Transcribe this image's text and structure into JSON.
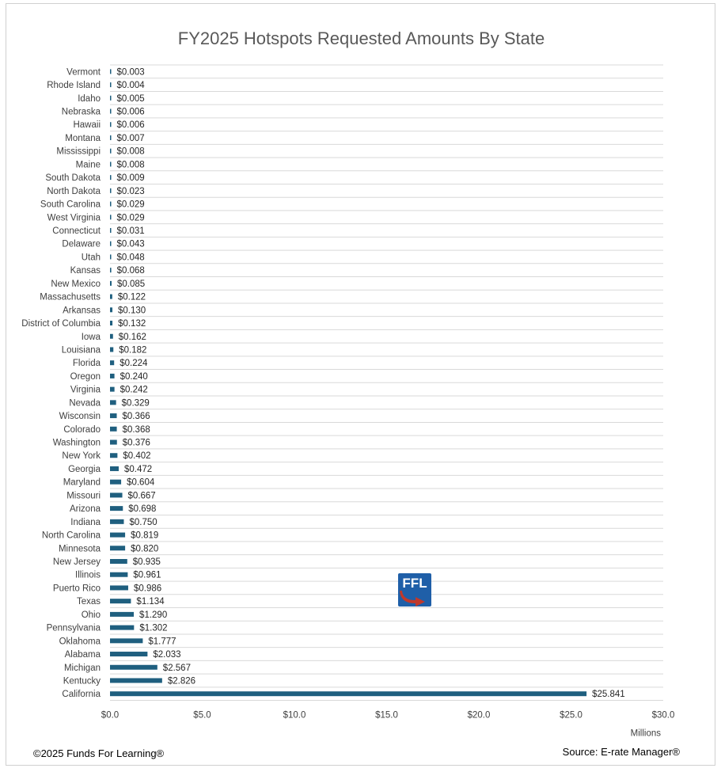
{
  "chart_data": {
    "type": "bar",
    "orientation": "horizontal",
    "title": "FY2025 Hotspots Requested Amounts By State",
    "xlabel": "",
    "x_unit_label": "Millions",
    "xlim": [
      0,
      30
    ],
    "x_ticks": [
      "$0.0",
      "$5.0",
      "$10.0",
      "$15.0",
      "$20.0",
      "$25.0",
      "$30.0"
    ],
    "grid": true,
    "bar_color": "#1f5f7f",
    "categories": [
      "Vermont",
      "Rhode Island",
      "Idaho",
      "Nebraska",
      "Hawaii",
      "Montana",
      "Mississippi",
      "Maine",
      "South Dakota",
      "North Dakota",
      "South Carolina",
      "West Virginia",
      "Connecticut",
      "Delaware",
      "Utah",
      "Kansas",
      "New Mexico",
      "Massachusetts",
      "Arkansas",
      "District of Columbia",
      "Iowa",
      "Louisiana",
      "Florida",
      "Oregon",
      "Virginia",
      "Nevada",
      "Wisconsin",
      "Colorado",
      "Washington",
      "New York",
      "Georgia",
      "Maryland",
      "Missouri",
      "Arizona",
      "Indiana",
      "North Carolina",
      "Minnesota",
      "New Jersey",
      "Illinois",
      "Puerto Rico",
      "Texas",
      "Ohio",
      "Pennsylvania",
      "Oklahoma",
      "Alabama",
      "Michigan",
      "Kentucky",
      "California"
    ],
    "values": [
      0.003,
      0.004,
      0.005,
      0.006,
      0.006,
      0.007,
      0.008,
      0.008,
      0.009,
      0.023,
      0.029,
      0.029,
      0.031,
      0.043,
      0.048,
      0.068,
      0.085,
      0.122,
      0.13,
      0.132,
      0.162,
      0.182,
      0.224,
      0.24,
      0.242,
      0.329,
      0.366,
      0.368,
      0.376,
      0.402,
      0.472,
      0.604,
      0.667,
      0.698,
      0.75,
      0.819,
      0.82,
      0.935,
      0.961,
      0.986,
      1.134,
      1.29,
      1.302,
      1.777,
      2.033,
      2.567,
      2.826,
      25.841
    ],
    "value_labels": [
      "$0.003",
      "$0.004",
      "$0.005",
      "$0.006",
      "$0.006",
      "$0.007",
      "$0.008",
      "$0.008",
      "$0.009",
      "$0.023",
      "$0.029",
      "$0.029",
      "$0.031",
      "$0.043",
      "$0.048",
      "$0.068",
      "$0.085",
      "$0.122",
      "$0.130",
      "$0.132",
      "$0.162",
      "$0.182",
      "$0.224",
      "$0.240",
      "$0.242",
      "$0.329",
      "$0.366",
      "$0.368",
      "$0.376",
      "$0.402",
      "$0.472",
      "$0.604",
      "$0.667",
      "$0.698",
      "$0.750",
      "$0.819",
      "$0.820",
      "$0.935",
      "$0.961",
      "$0.986",
      "$1.134",
      "$1.290",
      "$1.302",
      "$1.777",
      "$2.033",
      "$2.567",
      "$2.826",
      "$25.841"
    ]
  },
  "footer": {
    "copyright": "©2025 Funds For Learning®",
    "source": "Source: E-rate Manager®"
  },
  "logo": {
    "text": "FFL",
    "color": "#1f5fa8",
    "arrow_color": "#c0392b"
  }
}
